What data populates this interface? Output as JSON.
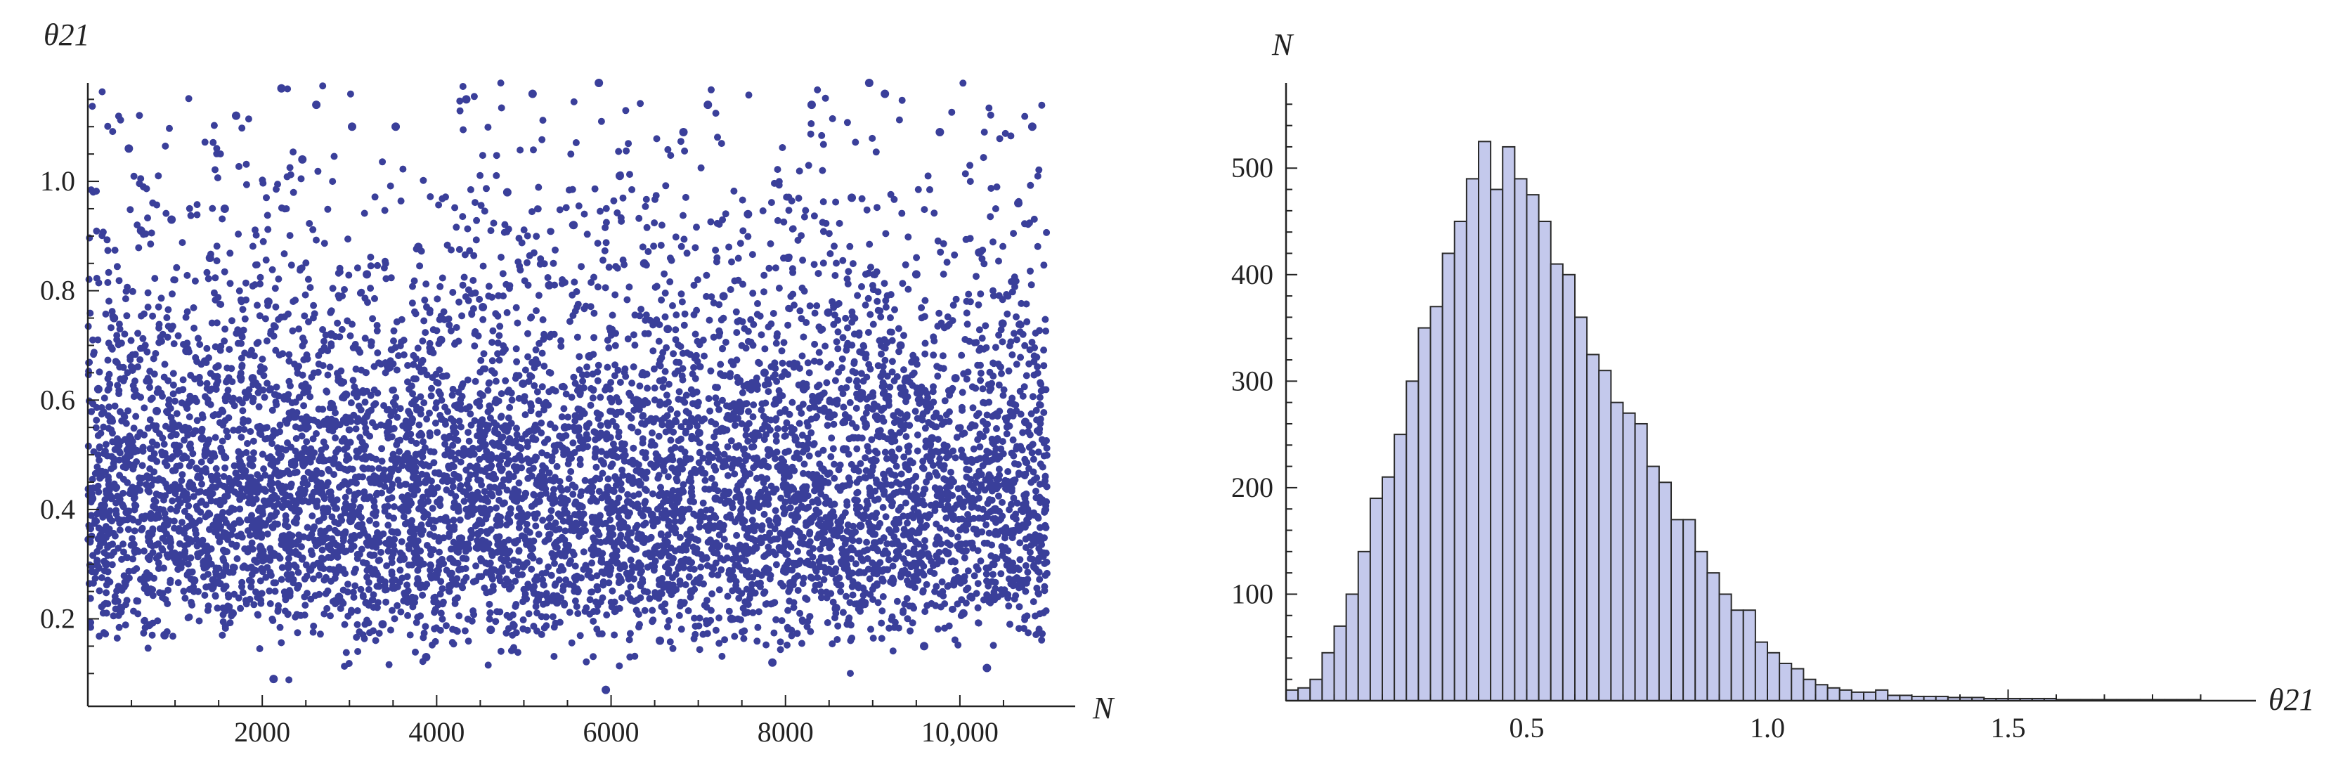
{
  "colors": {
    "scatter_point": "#3a3f9a",
    "bar_fill": "#c4c9ec",
    "bar_stroke": "#2a2a2a",
    "axis": "#222222"
  },
  "chart_data": [
    {
      "type": "scatter",
      "xlabel": "N",
      "ylabel": "θ21",
      "xlim": [
        0,
        11000
      ],
      "ylim": [
        0.04,
        1.18
      ],
      "x_ticks": [
        2000,
        4000,
        6000,
        8000,
        10000
      ],
      "x_tick_labels": [
        "2000",
        "4000",
        "6000",
        "8000",
        "10,000"
      ],
      "y_ticks": [
        0.2,
        0.4,
        0.6,
        0.8,
        1.0
      ],
      "y_tick_labels": [
        "0.2",
        "0.4",
        "0.6",
        "0.8",
        "1.0"
      ],
      "grid": false,
      "point_count": 11000,
      "distribution_summary": {
        "median": 0.45,
        "typical_range": [
          0.2,
          0.8
        ],
        "min": 0.06,
        "max": 1.18
      },
      "points": [
        [
          50,
          0.42
        ],
        [
          120,
          0.62
        ],
        [
          210,
          0.3
        ],
        [
          300,
          0.75
        ],
        [
          380,
          0.22
        ],
        [
          470,
          1.06
        ],
        [
          520,
          0.48
        ],
        [
          610,
          0.91
        ],
        [
          700,
          0.35
        ],
        [
          790,
          0.58
        ],
        [
          880,
          0.17
        ],
        [
          960,
          0.93
        ],
        [
          1050,
          0.44
        ],
        [
          1130,
          0.69
        ],
        [
          1220,
          0.27
        ],
        [
          1310,
          0.53
        ],
        [
          1400,
          0.86
        ],
        [
          1480,
          0.38
        ],
        [
          1570,
          0.95
        ],
        [
          1660,
          0.21
        ],
        [
          1700,
          1.12
        ],
        [
          1800,
          0.47
        ],
        [
          1890,
          0.64
        ],
        [
          1980,
          0.33
        ],
        [
          2070,
          0.78
        ],
        [
          2130,
          0.09
        ],
        [
          2220,
          1.17
        ],
        [
          2300,
          0.41
        ],
        [
          2380,
          0.57
        ],
        [
          2460,
          1.04
        ],
        [
          2550,
          0.29
        ],
        [
          2620,
          1.14
        ],
        [
          2700,
          0.49
        ],
        [
          2790,
          0.72
        ],
        [
          2880,
          0.24
        ],
        [
          2960,
          0.61
        ],
        [
          3030,
          1.1
        ],
        [
          3110,
          0.37
        ],
        [
          3200,
          0.83
        ],
        [
          3290,
          0.45
        ],
        [
          3380,
          0.19
        ],
        [
          3460,
          0.66
        ],
        [
          3530,
          1.1
        ],
        [
          3620,
          0.31
        ],
        [
          3710,
          0.56
        ],
        [
          3790,
          0.88
        ],
        [
          3880,
          0.13
        ],
        [
          3960,
          0.43
        ],
        [
          4050,
          0.71
        ],
        [
          4150,
          0.26
        ],
        [
          4240,
          0.59
        ],
        [
          4340,
          1.15
        ],
        [
          4430,
          0.4
        ],
        [
          4530,
          0.77
        ],
        [
          4620,
          0.18
        ],
        [
          4710,
          0.52
        ],
        [
          4810,
          0.98
        ],
        [
          4900,
          0.34
        ],
        [
          4990,
          0.63
        ],
        [
          5100,
          1.16
        ],
        [
          5190,
          0.46
        ],
        [
          5290,
          0.81
        ],
        [
          5380,
          0.23
        ],
        [
          5470,
          0.55
        ],
        [
          5570,
          0.92
        ],
        [
          5660,
          0.36
        ],
        [
          5750,
          0.68
        ],
        [
          5860,
          1.18
        ],
        [
          5940,
          0.07
        ],
        [
          6020,
          0.5
        ],
        [
          6100,
          1.01
        ],
        [
          6200,
          0.28
        ],
        [
          6290,
          0.6
        ],
        [
          6380,
          0.85
        ],
        [
          6470,
          0.39
        ],
        [
          6560,
          0.16
        ],
        [
          6650,
          0.73
        ],
        [
          6740,
          0.47
        ],
        [
          6830,
          1.09
        ],
        [
          6920,
          0.25
        ],
        [
          7010,
          0.54
        ],
        [
          7110,
          1.14
        ],
        [
          7200,
          0.42
        ],
        [
          7290,
          0.79
        ],
        [
          7380,
          0.2
        ],
        [
          7480,
          0.58
        ],
        [
          7570,
          0.94
        ],
        [
          7660,
          0.33
        ],
        [
          7760,
          0.65
        ],
        [
          7850,
          0.12
        ],
        [
          7940,
          0.48
        ],
        [
          8030,
          0.86
        ],
        [
          8120,
          0.3
        ],
        [
          8210,
          0.62
        ],
        [
          8300,
          1.14
        ],
        [
          8400,
          0.44
        ],
        [
          8490,
          0.76
        ],
        [
          8580,
          0.22
        ],
        [
          8670,
          0.51
        ],
        [
          8760,
          0.97
        ],
        [
          8860,
          0.37
        ],
        [
          8960,
          1.18
        ],
        [
          9040,
          0.57
        ],
        [
          9140,
          1.16
        ],
        [
          9230,
          0.27
        ],
        [
          9320,
          0.7
        ],
        [
          9410,
          0.45
        ],
        [
          9500,
          0.83
        ],
        [
          9590,
          0.15
        ],
        [
          9680,
          0.53
        ],
        [
          9770,
          1.09
        ],
        [
          9860,
          0.32
        ],
        [
          9950,
          0.64
        ],
        [
          10040,
          0.21
        ],
        [
          10130,
          0.49
        ],
        [
          10220,
          0.87
        ],
        [
          10310,
          0.11
        ],
        [
          10400,
          0.4
        ],
        [
          10490,
          0.74
        ],
        [
          10580,
          0.29
        ],
        [
          10670,
          0.96
        ],
        [
          10750,
          0.56
        ],
        [
          10830,
          1.1
        ],
        [
          10910,
          0.35
        ]
      ]
    },
    {
      "type": "bar",
      "subtype": "histogram",
      "xlabel": "θ21",
      "ylabel": "N",
      "xlim": [
        0,
        2.0
      ],
      "ylim": [
        0,
        580
      ],
      "x_ticks": [
        0.5,
        1.0,
        1.5
      ],
      "x_tick_labels": [
        "0.5",
        "1.0",
        "1.5"
      ],
      "y_ticks": [
        100,
        200,
        300,
        400,
        500
      ],
      "y_tick_labels": [
        "100",
        "200",
        "300",
        "400",
        "500"
      ],
      "grid": false,
      "bin_width": 0.025,
      "bin_start": 0.0,
      "values": [
        10,
        12,
        20,
        45,
        70,
        100,
        140,
        190,
        210,
        250,
        300,
        350,
        370,
        420,
        450,
        490,
        525,
        480,
        520,
        490,
        475,
        450,
        410,
        400,
        360,
        325,
        310,
        280,
        270,
        260,
        220,
        205,
        170,
        170,
        140,
        120,
        100,
        85,
        85,
        55,
        45,
        35,
        30,
        20,
        15,
        12,
        10,
        8,
        8,
        10,
        5,
        5,
        4,
        4,
        4,
        3,
        3,
        3,
        2,
        2,
        2,
        2,
        2,
        2,
        1,
        1,
        1,
        1,
        1,
        1,
        1,
        1,
        1,
        1,
        1,
        1
      ]
    }
  ]
}
